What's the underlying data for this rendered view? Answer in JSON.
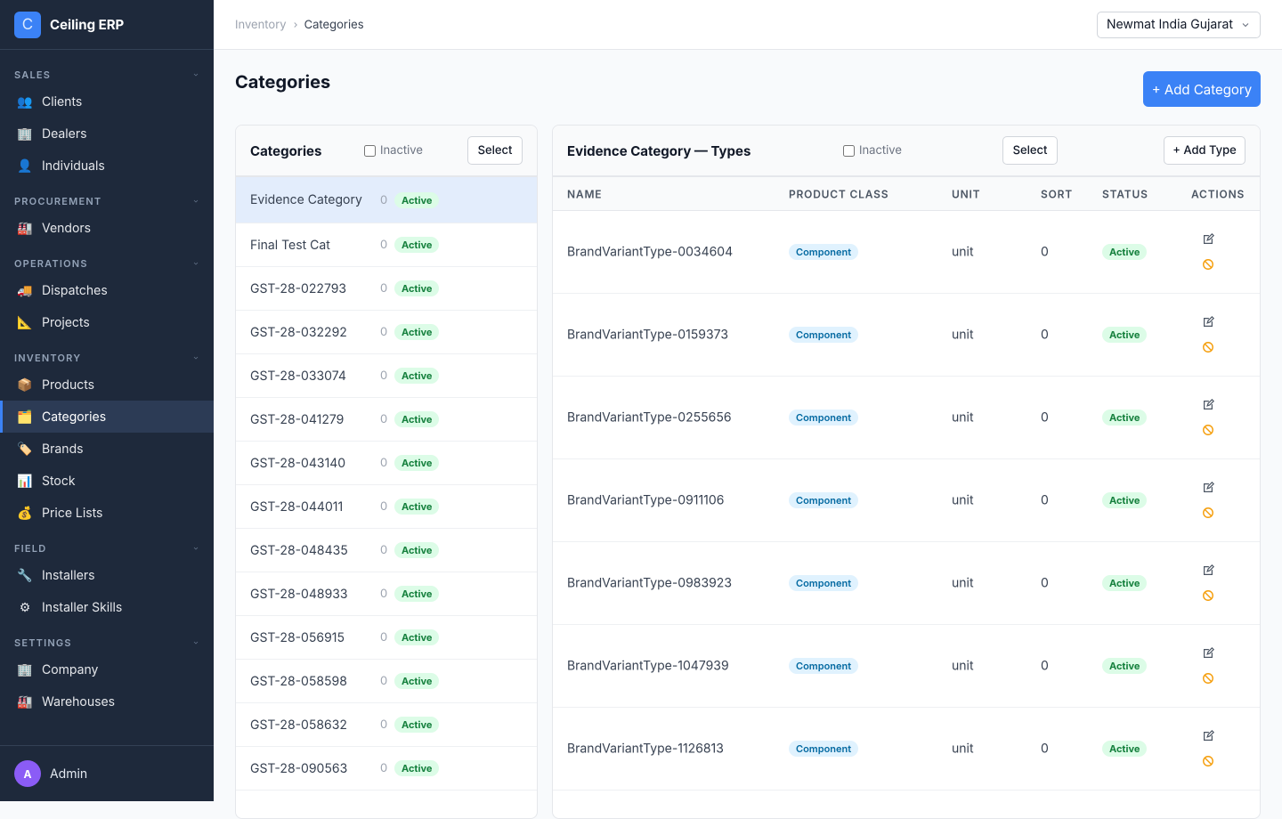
{
  "sidebar": {
    "logo": "C",
    "brand": "Ceiling ERP",
    "sections": [
      {
        "title": "SALES",
        "items": [
          {
            "icon": "👥",
            "label": "Clients"
          },
          {
            "icon": "🏢",
            "label": "Dealers"
          },
          {
            "icon": "👤",
            "label": "Individuals"
          }
        ]
      },
      {
        "title": "PROCUREMENT",
        "items": [
          {
            "icon": "🏭",
            "label": "Vendors"
          }
        ]
      },
      {
        "title": "OPERATIONS",
        "items": [
          {
            "icon": "🚚",
            "label": "Dispatches"
          },
          {
            "icon": "📐",
            "label": "Projects"
          }
        ]
      },
      {
        "title": "INVENTORY",
        "items": [
          {
            "icon": "📦",
            "label": "Products"
          },
          {
            "icon": "🗂️",
            "label": "Categories",
            "active": true
          },
          {
            "icon": "🏷️",
            "label": "Brands"
          },
          {
            "icon": "📊",
            "label": "Stock"
          },
          {
            "icon": "💰",
            "label": "Price Lists"
          }
        ]
      },
      {
        "title": "FIELD",
        "items": [
          {
            "icon": "🔧",
            "label": "Installers"
          },
          {
            "icon": "⚙",
            "label": "Installer Skills"
          }
        ]
      },
      {
        "title": "SETTINGS",
        "items": [
          {
            "icon": "🏢",
            "label": "Company"
          },
          {
            "icon": "🏭",
            "label": "Warehouses"
          }
        ]
      }
    ],
    "user": {
      "avatar": "A",
      "name": "Admin"
    }
  },
  "header": {
    "breadcrumb": [
      "Inventory",
      "Categories"
    ],
    "company": "Newmat India Gujarat"
  },
  "page": {
    "title": "Categories",
    "add_button": "+ Add Category"
  },
  "categories_panel": {
    "title": "Categories",
    "inactive_label": "Inactive",
    "select_button": "Select",
    "rows": [
      {
        "name": "Evidence Category",
        "count": 0,
        "status": "Active",
        "selected": true
      },
      {
        "name": "Final Test Cat",
        "count": 0,
        "status": "Active"
      },
      {
        "name": "GST-28-022793",
        "count": 0,
        "status": "Active"
      },
      {
        "name": "GST-28-032292",
        "count": 0,
        "status": "Active"
      },
      {
        "name": "GST-28-033074",
        "count": 0,
        "status": "Active"
      },
      {
        "name": "GST-28-041279",
        "count": 0,
        "status": "Active"
      },
      {
        "name": "GST-28-043140",
        "count": 0,
        "status": "Active"
      },
      {
        "name": "GST-28-044011",
        "count": 0,
        "status": "Active"
      },
      {
        "name": "GST-28-048435",
        "count": 0,
        "status": "Active"
      },
      {
        "name": "GST-28-048933",
        "count": 0,
        "status": "Active"
      },
      {
        "name": "GST-28-056915",
        "count": 0,
        "status": "Active"
      },
      {
        "name": "GST-28-058598",
        "count": 0,
        "status": "Active"
      },
      {
        "name": "GST-28-058632",
        "count": 0,
        "status": "Active"
      },
      {
        "name": "GST-28-090563",
        "count": 0,
        "status": "Active"
      }
    ]
  },
  "types_panel": {
    "title": "Evidence Category — Types",
    "inactive_label": "Inactive",
    "select_button": "Select",
    "add_button": "+ Add Type",
    "columns": [
      "NAME",
      "PRODUCT CLASS",
      "UNIT",
      "SORT",
      "STATUS",
      "ACTIONS"
    ],
    "rows": [
      {
        "name": "BrandVariantType-0034604",
        "product_class": "Component",
        "unit": "unit",
        "sort": 0,
        "status": "Active"
      },
      {
        "name": "BrandVariantType-0159373",
        "product_class": "Component",
        "unit": "unit",
        "sort": 0,
        "status": "Active"
      },
      {
        "name": "BrandVariantType-0255656",
        "product_class": "Component",
        "unit": "unit",
        "sort": 0,
        "status": "Active"
      },
      {
        "name": "BrandVariantType-0911106",
        "product_class": "Component",
        "unit": "unit",
        "sort": 0,
        "status": "Active"
      },
      {
        "name": "BrandVariantType-0983923",
        "product_class": "Component",
        "unit": "unit",
        "sort": 0,
        "status": "Active"
      },
      {
        "name": "BrandVariantType-1047939",
        "product_class": "Component",
        "unit": "unit",
        "sort": 0,
        "status": "Active"
      },
      {
        "name": "BrandVariantType-1126813",
        "product_class": "Component",
        "unit": "unit",
        "sort": 0,
        "status": "Active"
      }
    ]
  }
}
